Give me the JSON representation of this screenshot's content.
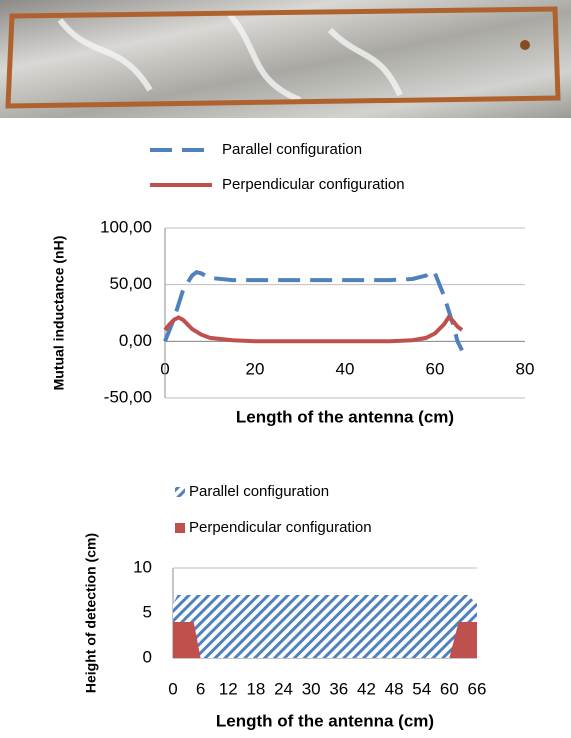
{
  "chart_data": [
    {
      "type": "line",
      "ylabel": "Mutual inductance (nH)",
      "xlabel": "Length of the antenna (cm)",
      "xlim": [
        0,
        80
      ],
      "xticks": [
        0,
        20,
        40,
        60,
        80
      ],
      "ylim": [
        -50,
        100
      ],
      "yticks": [
        {
          "value": -50,
          "label": "-50,00"
        },
        {
          "value": 0,
          "label": "0,00"
        },
        {
          "value": 50,
          "label": "50,00"
        },
        {
          "value": 100,
          "label": "100,00"
        }
      ],
      "grid": true,
      "legend": "top",
      "series": [
        {
          "name": "Parallel configuration",
          "color": "#4f81bd",
          "dash": "dashed",
          "x": [
            0,
            2,
            4,
            6,
            7,
            8,
            10,
            15,
            20,
            30,
            40,
            50,
            55,
            58,
            59,
            60,
            62,
            64,
            65,
            66
          ],
          "values": [
            0,
            20,
            45,
            58,
            61,
            60,
            56,
            54,
            54,
            54,
            54,
            54,
            55,
            58,
            62,
            60,
            40,
            15,
            0,
            -8
          ]
        },
        {
          "name": "Perpendicular configuration",
          "color": "#c0504d",
          "dash": "solid",
          "x": [
            0,
            1,
            2,
            3,
            4,
            5,
            6,
            8,
            10,
            15,
            20,
            30,
            40,
            50,
            55,
            58,
            60,
            62,
            63,
            64,
            65,
            66
          ],
          "values": [
            10,
            15,
            19,
            21,
            19,
            15,
            11,
            6,
            3,
            1,
            0,
            0,
            0,
            0,
            1,
            3,
            7,
            15,
            21,
            18,
            13,
            10
          ]
        }
      ]
    },
    {
      "type": "area",
      "ylabel": "Height of detection (cm)",
      "xlabel": "Length of the antenna (cm)",
      "xlim": [
        0,
        66
      ],
      "xticks": [
        0,
        6,
        12,
        18,
        24,
        30,
        36,
        42,
        48,
        54,
        60,
        66
      ],
      "ylim": [
        0,
        10
      ],
      "yticks": [
        0,
        5,
        10
      ],
      "grid": true,
      "legend": "top",
      "series": [
        {
          "name": "Parallel configuration",
          "color": "#4f81bd",
          "pattern": "hatch",
          "x": [
            0,
            1,
            64,
            66
          ],
          "values": [
            6,
            7,
            7,
            6
          ]
        },
        {
          "name": "Perpendicular configuration",
          "color": "#c0504d",
          "pattern": "solid",
          "x": [
            0,
            4.5,
            6,
            60,
            62,
            66
          ],
          "values": [
            4,
            4,
            0,
            0,
            4,
            4
          ]
        }
      ]
    }
  ]
}
